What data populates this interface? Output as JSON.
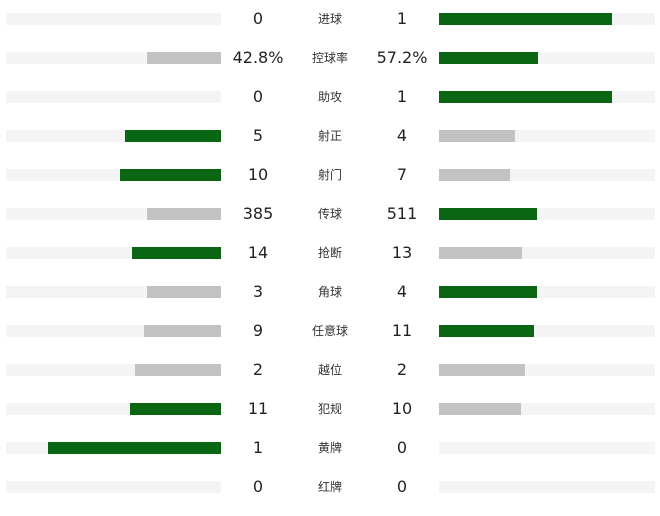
{
  "colors": {
    "leading": "#0a6612",
    "trailing": "#c2c2c2",
    "track": "#f4f4f4"
  },
  "stats": [
    {
      "label": "进球",
      "home": "0",
      "away": "1",
      "home_bar": 0,
      "away_bar": 173,
      "home_lead": false,
      "away_lead": true
    },
    {
      "label": "控球率",
      "home": "42.8%",
      "away": "57.2%",
      "home_bar": 74,
      "away_bar": 99,
      "home_lead": false,
      "away_lead": true
    },
    {
      "label": "助攻",
      "home": "0",
      "away": "1",
      "home_bar": 0,
      "away_bar": 173,
      "home_lead": false,
      "away_lead": true
    },
    {
      "label": "射正",
      "home": "5",
      "away": "4",
      "home_bar": 96,
      "away_bar": 76,
      "home_lead": true,
      "away_lead": false
    },
    {
      "label": "射门",
      "home": "10",
      "away": "7",
      "home_bar": 101,
      "away_bar": 71,
      "home_lead": true,
      "away_lead": false
    },
    {
      "label": "传球",
      "home": "385",
      "away": "511",
      "home_bar": 74,
      "away_bar": 98,
      "home_lead": false,
      "away_lead": true
    },
    {
      "label": "抢断",
      "home": "14",
      "away": "13",
      "home_bar": 89,
      "away_bar": 83,
      "home_lead": true,
      "away_lead": false
    },
    {
      "label": "角球",
      "home": "3",
      "away": "4",
      "home_bar": 74,
      "away_bar": 98,
      "home_lead": false,
      "away_lead": true
    },
    {
      "label": "任意球",
      "home": "9",
      "away": "11",
      "home_bar": 77,
      "away_bar": 95,
      "home_lead": false,
      "away_lead": true
    },
    {
      "label": "越位",
      "home": "2",
      "away": "2",
      "home_bar": 86,
      "away_bar": 86,
      "home_lead": false,
      "away_lead": false
    },
    {
      "label": "犯规",
      "home": "11",
      "away": "10",
      "home_bar": 91,
      "away_bar": 82,
      "home_lead": true,
      "away_lead": false
    },
    {
      "label": "黄牌",
      "home": "1",
      "away": "0",
      "home_bar": 173,
      "away_bar": 0,
      "home_lead": true,
      "away_lead": false
    },
    {
      "label": "红牌",
      "home": "0",
      "away": "0",
      "home_bar": 0,
      "away_bar": 0,
      "home_lead": false,
      "away_lead": false
    }
  ]
}
